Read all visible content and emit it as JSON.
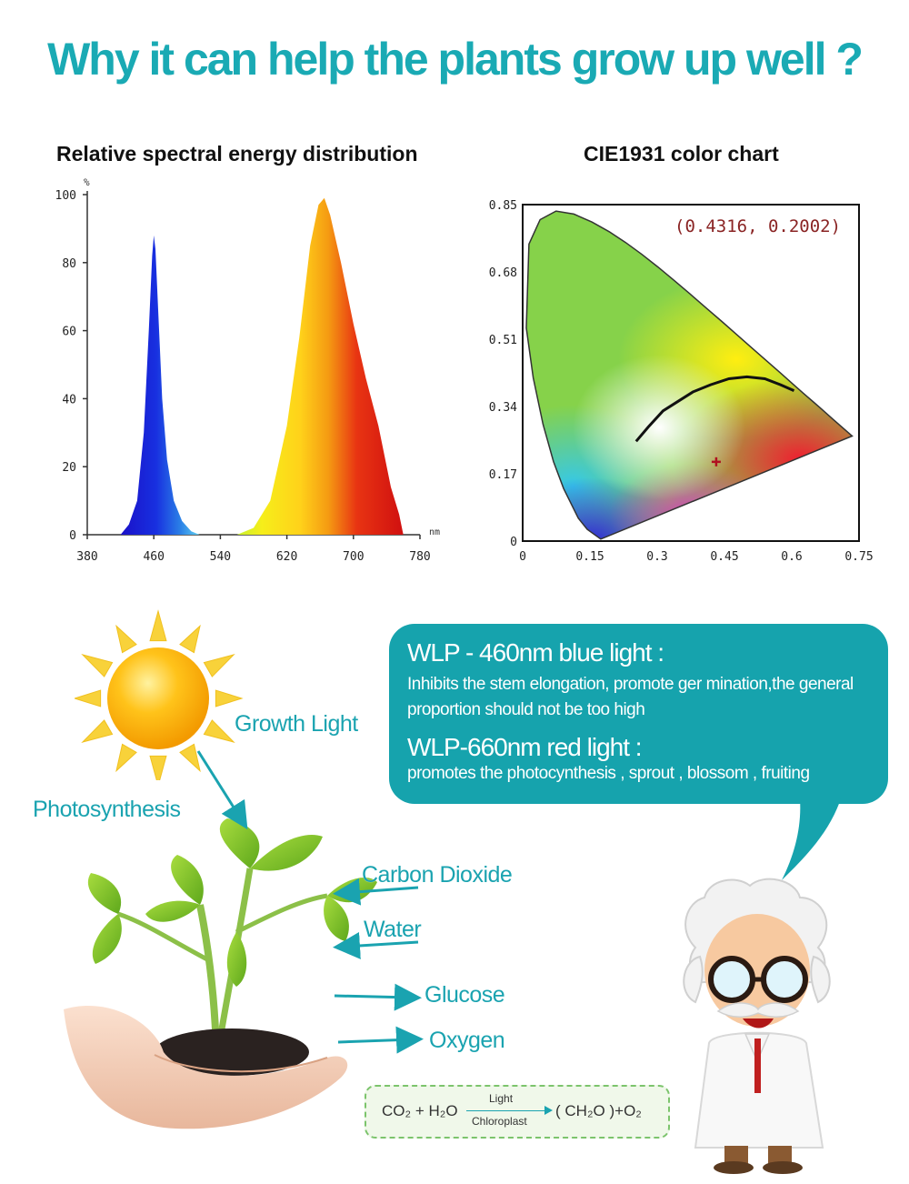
{
  "headline": "Why it can help the plants grow up well ?",
  "colors": {
    "teal": "#1aaab4",
    "bubble": "#16a3ad",
    "arrow": "#1aa3b0"
  },
  "spectrum_chart": {
    "title": "Relative spectral energy distribution",
    "y_unit": "%",
    "x_unit": "nm"
  },
  "cie_chart": {
    "title": "CIE1931 color chart",
    "coordinate_label": "(0.4316, 0.2002)"
  },
  "chart_data": [
    {
      "type": "area",
      "title": "Relative spectral energy distribution",
      "xlabel": "nm",
      "ylabel": "%",
      "xlim": [
        380,
        780
      ],
      "ylim": [
        0,
        100
      ],
      "x_ticks": [
        "380",
        "460",
        "540",
        "620",
        "700",
        "780"
      ],
      "y_ticks": [
        "0",
        "20",
        "40",
        "60",
        "80",
        "100"
      ],
      "series": [
        {
          "x": [
            420,
            430,
            440,
            448,
            454,
            458,
            460,
            462,
            466,
            470,
            476,
            484,
            494,
            505,
            515
          ],
          "y": [
            0,
            3,
            10,
            30,
            60,
            82,
            88,
            84,
            62,
            40,
            22,
            10,
            4,
            1,
            0
          ]
        },
        {
          "x": [
            560,
            580,
            600,
            620,
            635,
            648,
            658,
            665,
            672,
            685,
            700,
            715,
            730,
            745,
            755,
            760
          ],
          "y": [
            0,
            2,
            10,
            32,
            58,
            85,
            97,
            99,
            94,
            80,
            62,
            46,
            32,
            14,
            6,
            0
          ]
        }
      ]
    },
    {
      "type": "scatter",
      "title": "CIE1931 color chart",
      "xlim": [
        0,
        0.75
      ],
      "ylim": [
        0,
        0.85
      ],
      "x_ticks": [
        "0",
        "0.15",
        "0.3",
        "0.45",
        "0.6",
        "0.75"
      ],
      "y_ticks": [
        "0",
        "0.17",
        "0.34",
        "0.51",
        "0.68",
        "0.85"
      ],
      "grid": false,
      "points": [
        {
          "x": 0.4316,
          "y": 0.2002,
          "label": "(0.4316, 0.2002)"
        }
      ]
    }
  ],
  "bubble": {
    "blue_heading": "WLP - 460nm blue light :",
    "blue_text": "Inhibits the stem elongation, promote ger mination,the general proportion should not be too high",
    "red_heading": "WLP-660nm red light :",
    "red_text": "promotes the photocynthesis , sprout , blossom , fruiting"
  },
  "labels": {
    "growth_light": "Growth Light",
    "photosynthesis": "Photosynthesis",
    "carbon_dioxide": "Carbon Dioxide",
    "water": "Water",
    "glucose": "Glucose",
    "oxygen": "Oxygen"
  },
  "equation": {
    "left": "CO₂ + H₂O",
    "above": "Light",
    "below": "Chloroplast",
    "right": "( CH₂O )+O₂"
  },
  "icons": [
    "sun-icon",
    "plant-in-hands-icon",
    "scientist-icon"
  ]
}
